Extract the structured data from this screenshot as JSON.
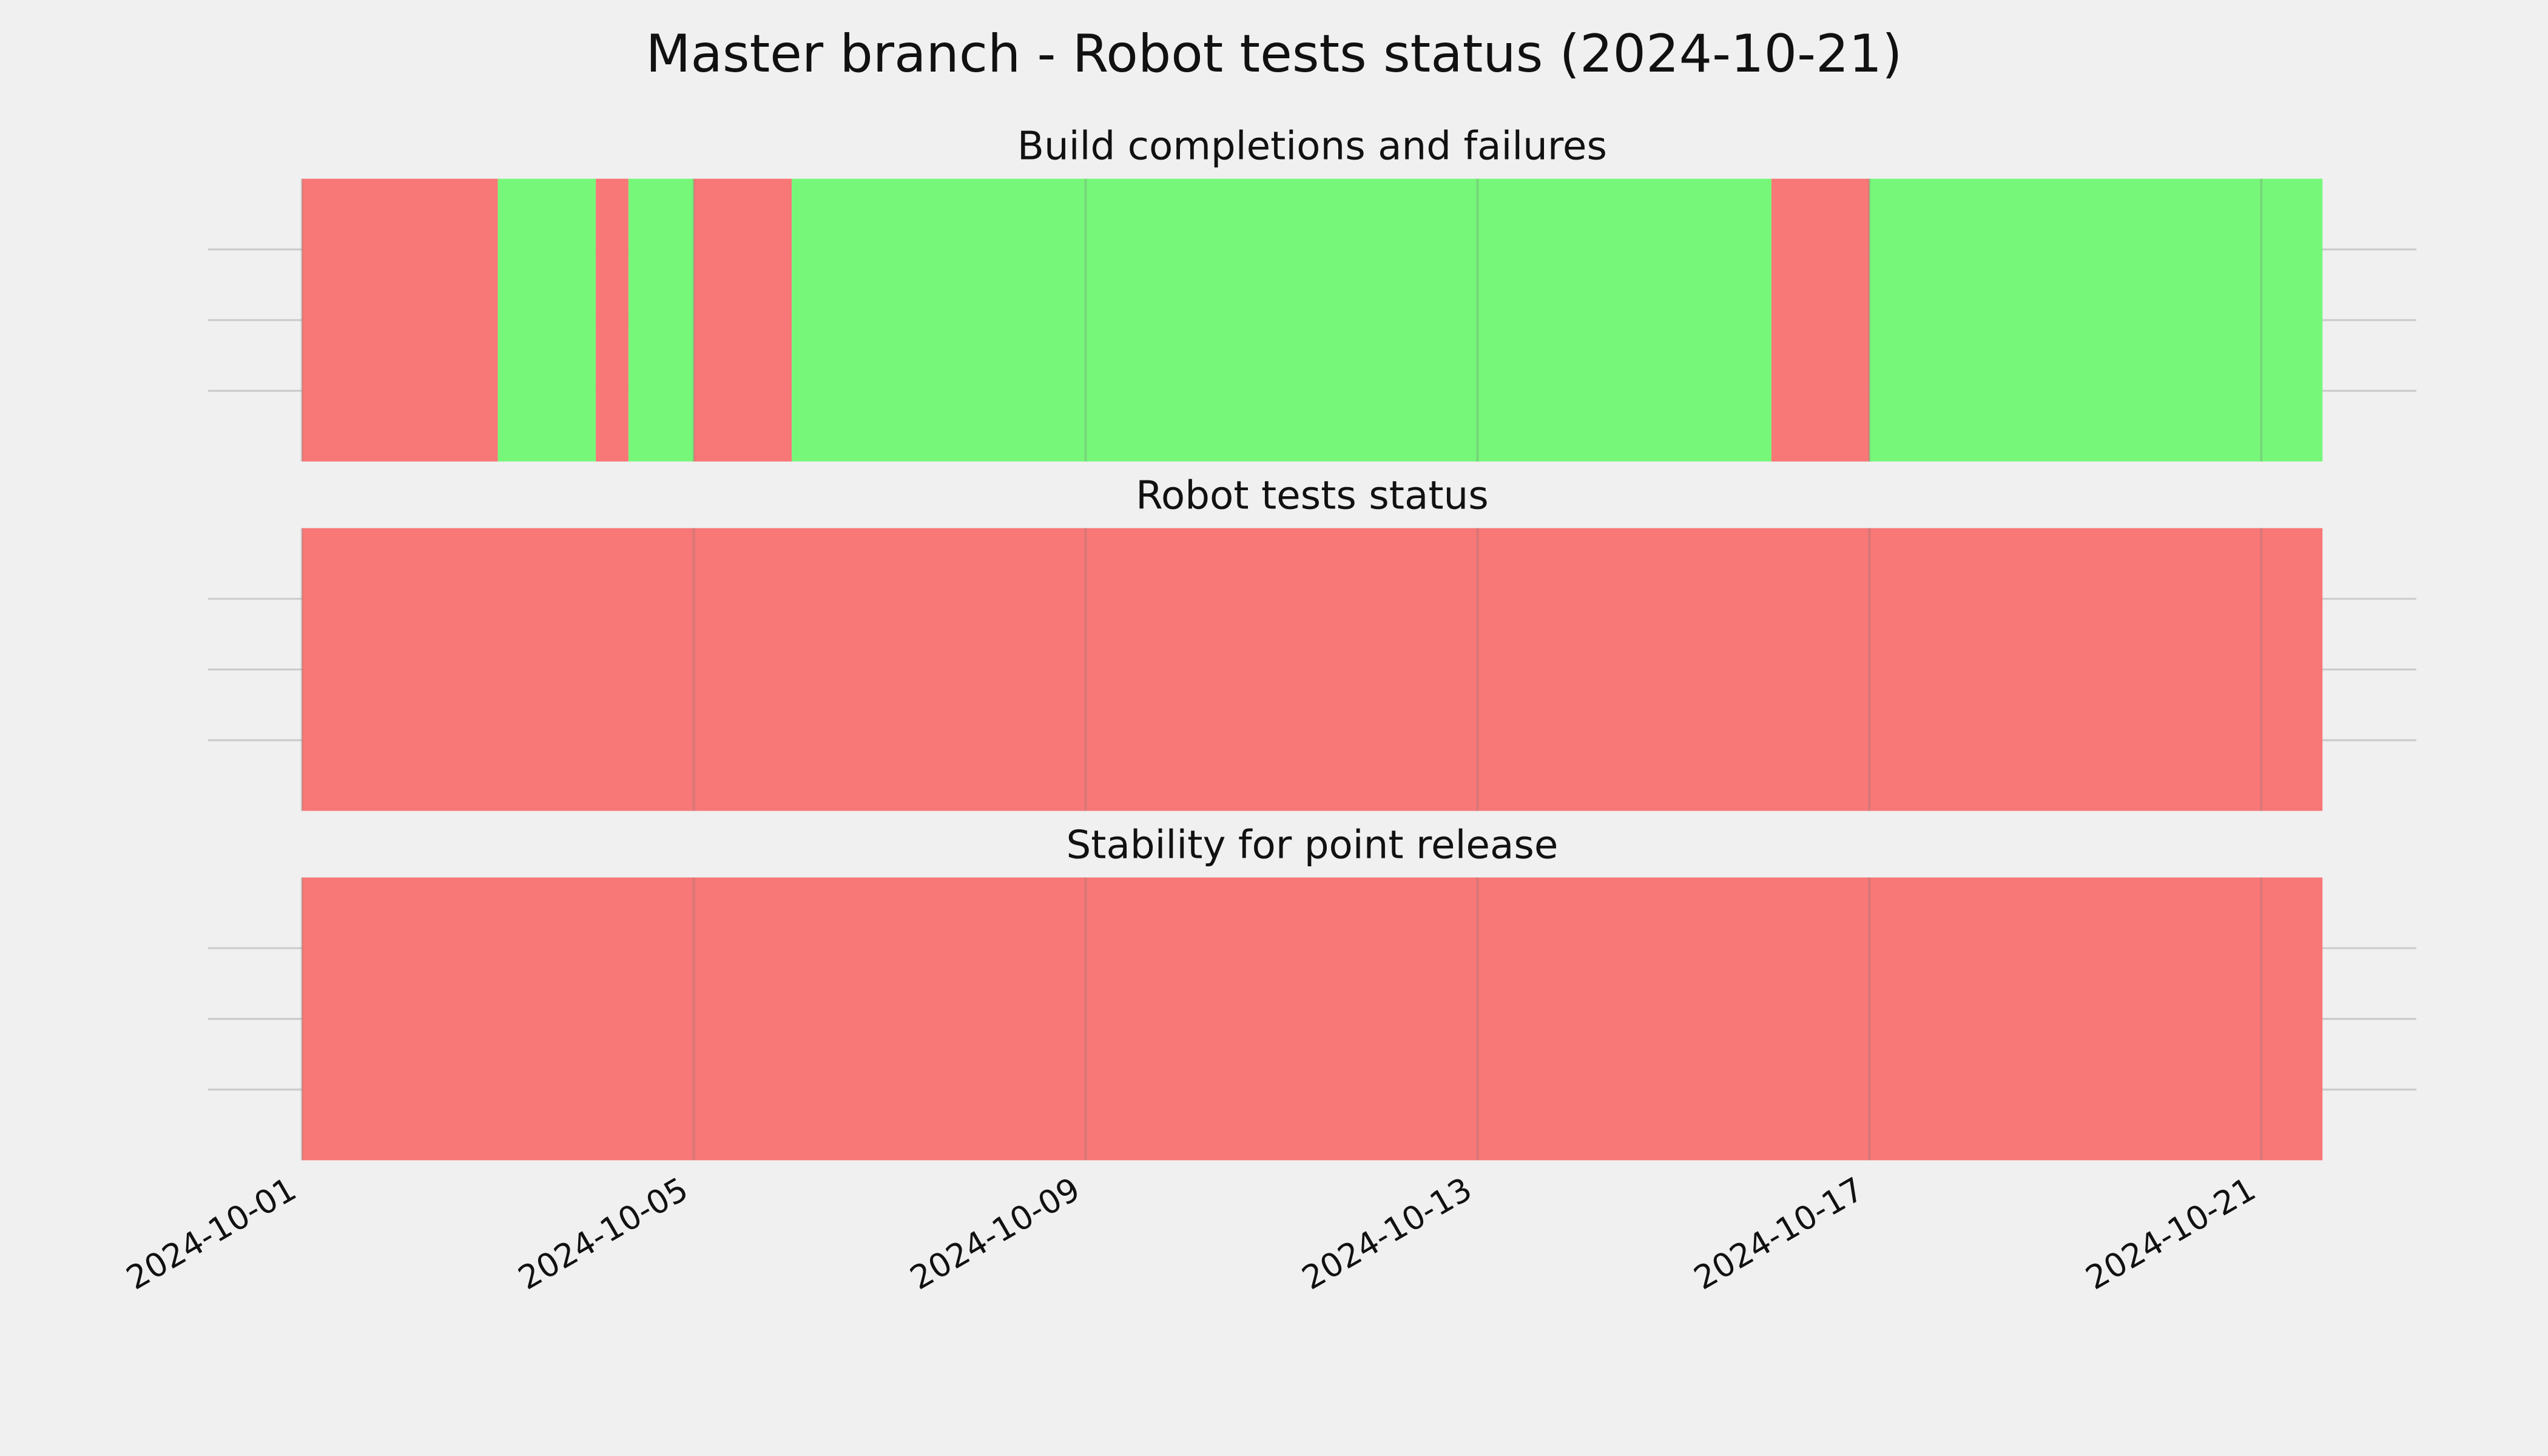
{
  "title": "Master branch - Robot tests status (2024-10-21)",
  "chart_data": [
    {
      "type": "timeline",
      "title": "Build completions and failures",
      "segments": [
        {
          "start": "2024-10-01",
          "end": "2024-10-03",
          "color": "#f87777"
        },
        {
          "start": "2024-10-03",
          "end": "2024-10-04",
          "color": "#77f77a"
        },
        {
          "start": "2024-10-04",
          "end": "2024-10-04T08:00",
          "color": "#f87777"
        },
        {
          "start": "2024-10-04T08:00",
          "end": "2024-10-05",
          "color": "#77f77a"
        },
        {
          "start": "2024-10-05",
          "end": "2024-10-06",
          "color": "#f87777"
        },
        {
          "start": "2024-10-06",
          "end": "2024-10-16",
          "color": "#77f77a"
        },
        {
          "start": "2024-10-16",
          "end": "2024-10-17",
          "color": "#f87777"
        },
        {
          "start": "2024-10-17",
          "end": "2024-10-21T15:00",
          "color": "#77f77a"
        }
      ],
      "xlim": [
        "2024-09-30T01:00",
        "2024-10-22T14:00"
      ],
      "xticks": [
        "2024-10-01",
        "2024-10-05",
        "2024-10-09",
        "2024-10-13",
        "2024-10-17",
        "2024-10-21"
      ],
      "ylim": [
        0,
        1
      ],
      "yticks": [
        0.25,
        0.5,
        0.75
      ],
      "grid": true
    },
    {
      "type": "timeline",
      "title": "Robot tests status",
      "segments": [
        {
          "start": "2024-10-01",
          "end": "2024-10-21T15:00",
          "color": "#f87777"
        }
      ],
      "xlim": [
        "2024-09-30T01:00",
        "2024-10-22T14:00"
      ],
      "xticks": [
        "2024-10-01",
        "2024-10-05",
        "2024-10-09",
        "2024-10-13",
        "2024-10-17",
        "2024-10-21"
      ],
      "ylim": [
        0,
        1
      ],
      "yticks": [
        0.25,
        0.5,
        0.75
      ],
      "grid": true
    },
    {
      "type": "timeline",
      "title": "Stability for point release",
      "segments": [
        {
          "start": "2024-10-01",
          "end": "2024-10-21T15:00",
          "color": "#f87777"
        }
      ],
      "xlim": [
        "2024-09-30T01:00",
        "2024-10-22T14:00"
      ],
      "xticks": [
        "2024-10-01",
        "2024-10-05",
        "2024-10-09",
        "2024-10-13",
        "2024-10-17",
        "2024-10-21"
      ],
      "ylim": [
        0,
        1
      ],
      "yticks": [
        0.25,
        0.5,
        0.75
      ],
      "grid": true,
      "show_xtick_labels": true
    }
  ]
}
